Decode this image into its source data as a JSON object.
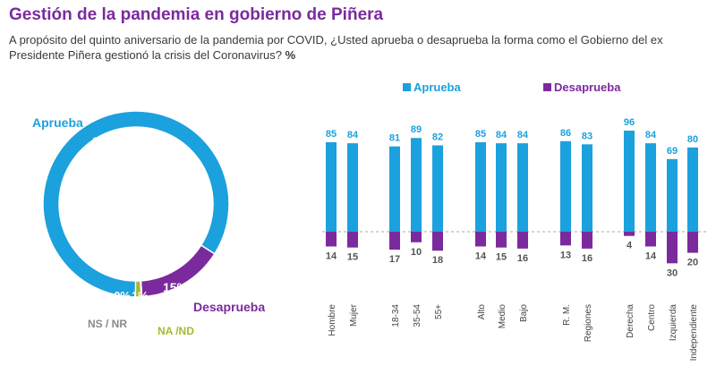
{
  "title": "Gestión de la pandemia en gobierno de Piñera",
  "subtitle": "A propósito del quinto aniversario de la pandemia por COVID, ¿Usted aprueba o desaprueba la forma como el Gobierno del ex Presidente Piñera gestionó la crisis del Coronavirus?",
  "unit": "%",
  "colors": {
    "approve": "#1ba1dd",
    "disapprove": "#7b2a9e",
    "nsnr": "#8a8a8a",
    "nand": "#a8b832"
  },
  "chart_data": [
    {
      "type": "pie",
      "variant": "donut",
      "slices": [
        {
          "name": "Aprueba",
          "value": 84,
          "label": "84%"
        },
        {
          "name": "Desaprueba",
          "value": 15,
          "label": "15%"
        },
        {
          "name": "NS / NR",
          "value": 0,
          "label": "0%"
        },
        {
          "name": "NA /ND",
          "value": 1,
          "label": "1%"
        }
      ]
    },
    {
      "type": "bar",
      "legend": [
        "Aprueba",
        "Desaprueba"
      ],
      "legend_position": "top",
      "categories": [
        "Hombre",
        "Mujer",
        "18-34",
        "35-54",
        "55+",
        "Alto",
        "Medio",
        "Bajo",
        "R. M.",
        "Regiones",
        "Derecha",
        "Centro",
        "Izquierda",
        "Independiente"
      ],
      "series": [
        {
          "name": "Aprueba",
          "values": [
            85,
            84,
            81,
            89,
            82,
            85,
            84,
            84,
            86,
            83,
            96,
            84,
            69,
            80
          ]
        },
        {
          "name": "Desaprueba",
          "values": [
            14,
            15,
            17,
            10,
            18,
            14,
            15,
            16,
            13,
            16,
            4,
            14,
            30,
            20
          ]
        }
      ],
      "grid": false
    }
  ]
}
